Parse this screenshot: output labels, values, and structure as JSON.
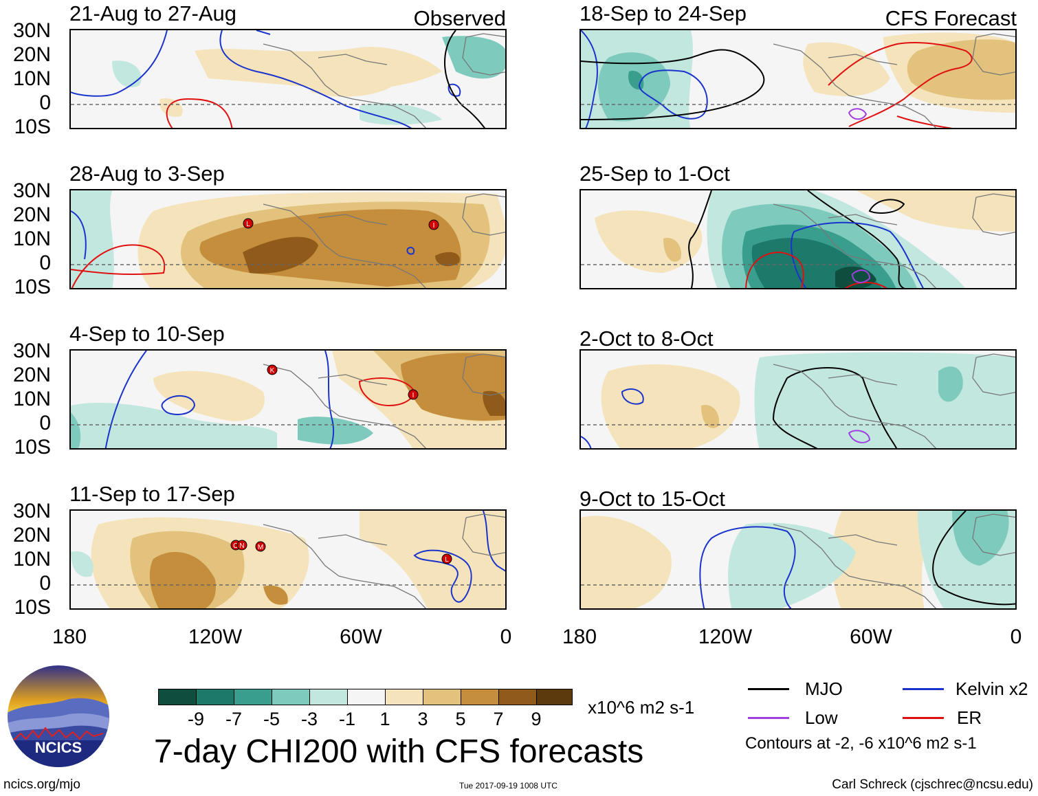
{
  "panels": {
    "left": [
      {
        "title": "21-Aug to 27-Aug",
        "tag": "Observed"
      },
      {
        "title": "28-Aug to 3-Sep",
        "tag": ""
      },
      {
        "title": "4-Sep to 10-Sep",
        "tag": ""
      },
      {
        "title": "11-Sep to 17-Sep",
        "tag": ""
      }
    ],
    "right": [
      {
        "title": "18-Sep to 24-Sep",
        "tag": "CFS Forecast"
      },
      {
        "title": "25-Sep to 1-Oct",
        "tag": ""
      },
      {
        "title": "2-Oct to 8-Oct",
        "tag": ""
      },
      {
        "title": "9-Oct to 15-Oct",
        "tag": ""
      }
    ]
  },
  "lat_labels": [
    "30N",
    "20N",
    "10N",
    "0",
    "10S"
  ],
  "lon_labels": [
    "180",
    "120W",
    "60W",
    "0"
  ],
  "storm_labels": {
    "p2": [
      "L",
      "I"
    ],
    "p3": [
      "K",
      "I"
    ],
    "p4": [
      "O",
      "N",
      "M",
      "L"
    ]
  },
  "colorbar": {
    "colors": [
      "#0f4d3f",
      "#1d7a6a",
      "#3a9e8e",
      "#7ecbbd",
      "#c2e7df",
      "#f5f5f5",
      "#f5e4bb",
      "#e2c27d",
      "#c58e3d",
      "#8f5a1a",
      "#5c3a0e"
    ],
    "tick_labels": [
      "-9",
      "-7",
      "-5",
      "-3",
      "-1",
      "1",
      "3",
      "5",
      "7",
      "9"
    ],
    "units": "x10^6 m2 s-1"
  },
  "main_title": "7-day CHI200 with CFS forecasts",
  "legend": {
    "items": [
      {
        "label": "MJO",
        "color": "#000000"
      },
      {
        "label": "Kelvin x2",
        "color": "#1a33cc"
      },
      {
        "label": "Low",
        "color": "#a040e0"
      },
      {
        "label": "ER",
        "color": "#e01010"
      }
    ],
    "note": "Contours at -2, -6 x10^6 m2 s-1"
  },
  "logo_text": "NCICS",
  "footer": {
    "left": "ncics.org/mjo",
    "center": "Tue 2017-09-19 1008 UTC",
    "right": "Carl Schreck (cjschrec@ncsu.edu)"
  }
}
